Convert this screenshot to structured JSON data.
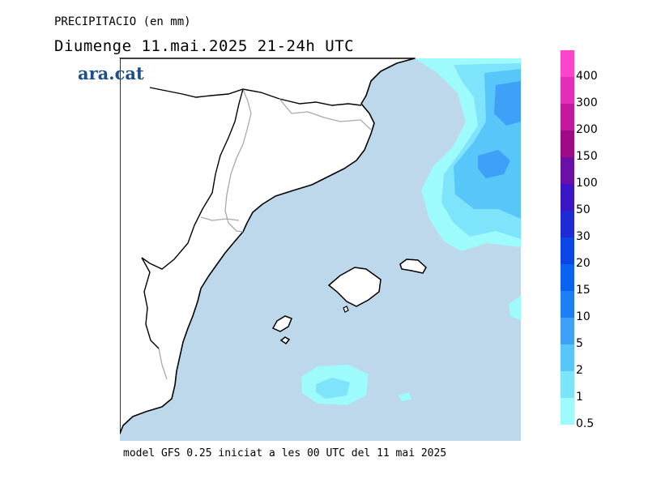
{
  "header": {
    "title": "PRECIPITACIO (en mm)",
    "subtitle": "Diumenge  11.mai.2025 21-24h UTC",
    "logo": "ara.cat"
  },
  "footer": {
    "model_note": "model GFS 0.25 iniciat a les 00 UTC del 11 mai 2025"
  },
  "legend": {
    "levels": [
      {
        "label": "400",
        "color": "#ff44cc"
      },
      {
        "label": "300",
        "color": "#e22fb5"
      },
      {
        "label": "200",
        "color": "#c4199c"
      },
      {
        "label": "150",
        "color": "#9f0b84"
      },
      {
        "label": "100",
        "color": "#6a10a6"
      },
      {
        "label": "50",
        "color": "#3b16c4"
      },
      {
        "label": "30",
        "color": "#1d2ad6"
      },
      {
        "label": "20",
        "color": "#0c45e6"
      },
      {
        "label": "15",
        "color": "#0a62f0"
      },
      {
        "label": "10",
        "color": "#1e7ff4"
      },
      {
        "label": "5",
        "color": "#3ea0f7"
      },
      {
        "label": "2",
        "color": "#58c6f8"
      },
      {
        "label": "1",
        "color": "#7ee4fb"
      },
      {
        "label": "0.5",
        "color": "#9dfbfb"
      }
    ]
  },
  "map": {
    "sea_color": "#bcd8ea",
    "land_color": "#ffffff",
    "coast_color": "#000000",
    "border_color": "#a9a9a9"
  }
}
